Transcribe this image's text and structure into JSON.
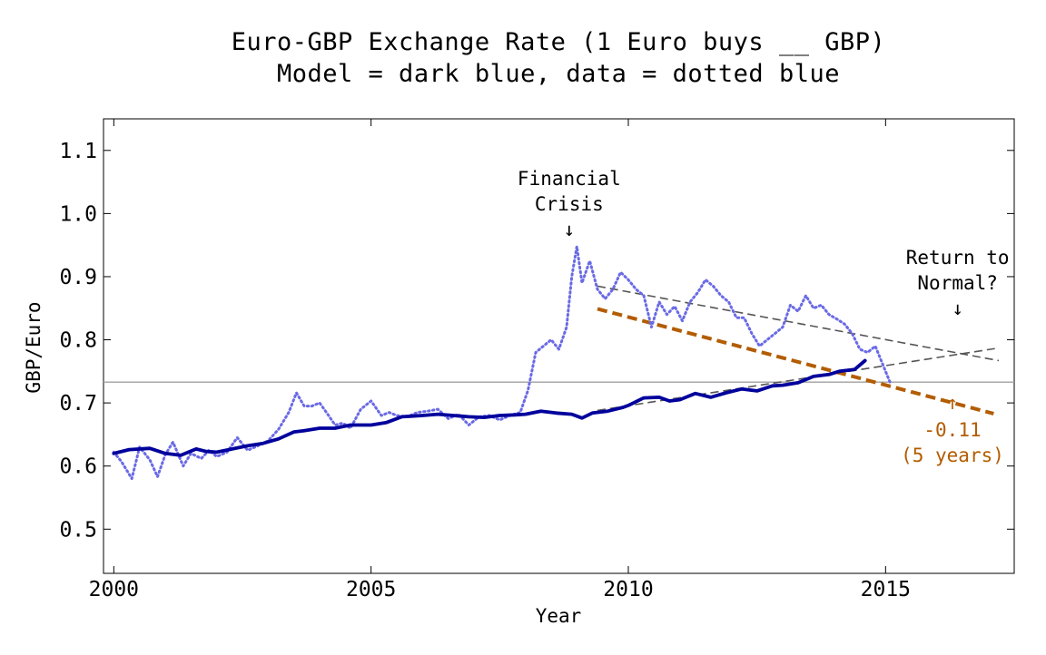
{
  "chart_data": {
    "type": "line",
    "title": "Euro-GBP Exchange Rate (1 Euro buys __ GBP)",
    "subtitle": "Model = dark blue, data = dotted blue",
    "xlabel": "Year",
    "ylabel": "GBP/Euro",
    "xlim": [
      1999.8,
      2017.5
    ],
    "ylim": [
      0.43,
      1.15
    ],
    "xticks": [
      2000,
      2005,
      2010,
      2015
    ],
    "yticks": [
      0.5,
      0.6,
      0.7,
      0.8,
      0.9,
      1.0,
      1.1
    ],
    "grid": false,
    "reference_line": {
      "y": 0.733,
      "color": "#a0a0a0"
    },
    "series": [
      {
        "name": "Model",
        "style": "solid",
        "color": "#00009c",
        "x": [
          2000.0,
          2000.3,
          2000.7,
          2001.0,
          2001.3,
          2001.6,
          2001.8,
          2002.0,
          2002.3,
          2002.6,
          2002.9,
          2003.2,
          2003.5,
          2003.7,
          2004.0,
          2004.3,
          2004.6,
          2004.8,
          2005.0,
          2005.3,
          2005.6,
          2005.8,
          2006.0,
          2006.3,
          2006.6,
          2006.9,
          2007.2,
          2007.5,
          2007.8,
          2008.0,
          2008.3,
          2008.6,
          2008.9,
          2009.1,
          2009.3,
          2009.6,
          2009.9,
          2010.0,
          2010.3,
          2010.6,
          2010.8,
          2011.0,
          2011.3,
          2011.6,
          2011.9,
          2012.2,
          2012.5,
          2012.8,
          2013.0,
          2013.3,
          2013.6,
          2013.9,
          2014.1,
          2014.4,
          2014.6
        ],
        "values": [
          0.62,
          0.626,
          0.628,
          0.62,
          0.617,
          0.627,
          0.623,
          0.622,
          0.627,
          0.632,
          0.636,
          0.643,
          0.654,
          0.656,
          0.66,
          0.66,
          0.665,
          0.665,
          0.665,
          0.669,
          0.678,
          0.679,
          0.68,
          0.682,
          0.68,
          0.678,
          0.677,
          0.68,
          0.681,
          0.682,
          0.687,
          0.684,
          0.682,
          0.676,
          0.684,
          0.687,
          0.693,
          0.696,
          0.708,
          0.709,
          0.703,
          0.705,
          0.715,
          0.709,
          0.716,
          0.722,
          0.719,
          0.727,
          0.728,
          0.732,
          0.742,
          0.745,
          0.75,
          0.753,
          0.767
        ]
      },
      {
        "name": "Data",
        "style": "dotted",
        "color": "#6a6ae6",
        "x": [
          2000.0,
          2000.15,
          2000.35,
          2000.5,
          2000.7,
          2000.85,
          2001.0,
          2001.15,
          2001.35,
          2001.5,
          2001.7,
          2001.85,
          2002.0,
          2002.2,
          2002.4,
          2002.6,
          2002.8,
          2003.0,
          2003.2,
          2003.4,
          2003.55,
          2003.7,
          2003.85,
          2004.0,
          2004.15,
          2004.3,
          2004.45,
          2004.6,
          2004.8,
          2005.0,
          2005.2,
          2005.35,
          2005.5,
          2005.7,
          2005.9,
          2006.1,
          2006.3,
          2006.5,
          2006.7,
          2006.9,
          2007.1,
          2007.3,
          2007.5,
          2007.7,
          2007.9,
          2008.05,
          2008.2,
          2008.35,
          2008.5,
          2008.65,
          2008.8,
          2008.9,
          2009.0,
          2009.1,
          2009.25,
          2009.4,
          2009.55,
          2009.7,
          2009.85,
          2010.0,
          2010.15,
          2010.3,
          2010.45,
          2010.6,
          2010.75,
          2010.9,
          2011.05,
          2011.2,
          2011.35,
          2011.5,
          2011.65,
          2011.8,
          2011.95,
          2012.1,
          2012.25,
          2012.4,
          2012.55,
          2012.7,
          2012.85,
          2013.0,
          2013.15,
          2013.3,
          2013.45,
          2013.6,
          2013.75,
          2013.9,
          2014.05,
          2014.2,
          2014.35,
          2014.5,
          2014.65,
          2014.8,
          2014.95,
          2015.1
        ],
        "values": [
          0.622,
          0.607,
          0.58,
          0.63,
          0.61,
          0.583,
          0.618,
          0.638,
          0.6,
          0.62,
          0.612,
          0.625,
          0.615,
          0.622,
          0.645,
          0.625,
          0.632,
          0.64,
          0.658,
          0.685,
          0.716,
          0.695,
          0.695,
          0.7,
          0.683,
          0.665,
          0.668,
          0.66,
          0.69,
          0.703,
          0.68,
          0.685,
          0.68,
          0.678,
          0.685,
          0.687,
          0.69,
          0.675,
          0.682,
          0.665,
          0.678,
          0.68,
          0.673,
          0.68,
          0.685,
          0.72,
          0.78,
          0.79,
          0.8,
          0.785,
          0.82,
          0.9,
          0.948,
          0.89,
          0.925,
          0.88,
          0.865,
          0.88,
          0.907,
          0.895,
          0.88,
          0.87,
          0.82,
          0.86,
          0.84,
          0.853,
          0.83,
          0.86,
          0.875,
          0.895,
          0.885,
          0.87,
          0.86,
          0.835,
          0.835,
          0.81,
          0.79,
          0.8,
          0.81,
          0.82,
          0.855,
          0.845,
          0.87,
          0.85,
          0.855,
          0.84,
          0.833,
          0.825,
          0.81,
          0.785,
          0.78,
          0.79,
          0.76,
          0.73
        ]
      }
    ],
    "trend_lines": [
      {
        "style": "dashed",
        "color": "#555555",
        "x": [
          2009.4,
          2017.2
        ],
        "y": [
          0.885,
          0.767
        ]
      },
      {
        "style": "dashed",
        "color": "#555555",
        "x": [
          2009.4,
          2017.2
        ],
        "y": [
          0.688,
          0.787
        ]
      },
      {
        "style": "dashed",
        "color": "#b35c00",
        "x": [
          2009.4,
          2017.1
        ],
        "y": [
          0.849,
          0.683
        ]
      }
    ],
    "annotations": [
      {
        "lines": [
          "Financial",
          "Crisis"
        ],
        "arrow": "↓",
        "x": 2008.85,
        "y": 1.045,
        "color": "#000000"
      },
      {
        "lines": [
          "Return to",
          "Normal?"
        ],
        "arrow": "↓",
        "x": 2016.4,
        "y": 0.92,
        "color": "#000000"
      },
      {
        "lines": [
          "-0.11",
          "(5 years)"
        ],
        "arrow": "↑",
        "x": 2016.3,
        "y": 0.69,
        "color": "#b35c00"
      }
    ]
  }
}
